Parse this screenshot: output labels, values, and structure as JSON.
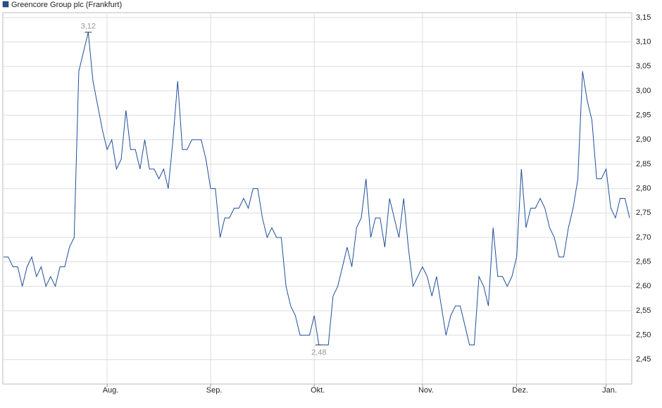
{
  "chart_data": {
    "type": "line",
    "categories": [
      null,
      null,
      null,
      null,
      null,
      null,
      null,
      null,
      null,
      null,
      null,
      null,
      null,
      null,
      null,
      null,
      null,
      null,
      null,
      null,
      null,
      null,
      "Aug.",
      null,
      null,
      null,
      null,
      null,
      null,
      null,
      null,
      null,
      null,
      null,
      null,
      null,
      null,
      null,
      null,
      null,
      null,
      null,
      null,
      null,
      "Sep.",
      null,
      null,
      null,
      null,
      null,
      null,
      null,
      null,
      null,
      null,
      null,
      null,
      null,
      null,
      null,
      null,
      null,
      null,
      null,
      null,
      null,
      "Okt.",
      null,
      null,
      null,
      null,
      null,
      null,
      null,
      null,
      null,
      null,
      null,
      null,
      null,
      null,
      null,
      null,
      null,
      null,
      null,
      null,
      null,
      null,
      "Nov.",
      null,
      null,
      null,
      null,
      null,
      null,
      null,
      null,
      null,
      null,
      null,
      null,
      null,
      null,
      null,
      null,
      null,
      null,
      null,
      "Dez.",
      null,
      null,
      null,
      null,
      null,
      null,
      null,
      null,
      null,
      null,
      null,
      null,
      null,
      null,
      null,
      null,
      null,
      null,
      "Jan.",
      null,
      null,
      null,
      null,
      null
    ],
    "series": [
      {
        "name": "Greencore Group plc (Frankfurt)",
        "color": "#1f4e9a",
        "values": [
          2.66,
          2.66,
          2.64,
          2.64,
          2.6,
          2.64,
          2.66,
          2.62,
          2.64,
          2.6,
          2.62,
          2.6,
          2.64,
          2.64,
          2.68,
          2.7,
          3.04,
          3.08,
          3.12,
          3.02,
          2.97,
          2.92,
          2.88,
          2.9,
          2.84,
          2.86,
          2.96,
          2.88,
          2.88,
          2.84,
          2.9,
          2.84,
          2.84,
          2.82,
          2.84,
          2.8,
          2.9,
          3.02,
          2.88,
          2.88,
          2.9,
          2.9,
          2.9,
          2.86,
          2.8,
          2.8,
          2.7,
          2.74,
          2.74,
          2.76,
          2.76,
          2.78,
          2.76,
          2.8,
          2.8,
          2.74,
          2.7,
          2.72,
          2.7,
          2.7,
          2.6,
          2.56,
          2.54,
          2.5,
          2.5,
          2.5,
          2.54,
          2.48,
          2.48,
          2.48,
          2.58,
          2.6,
          2.64,
          2.68,
          2.64,
          2.72,
          2.74,
          2.82,
          2.7,
          2.74,
          2.74,
          2.68,
          2.78,
          2.74,
          2.7,
          2.78,
          2.68,
          2.6,
          2.62,
          2.64,
          2.62,
          2.58,
          2.62,
          2.56,
          2.5,
          2.54,
          2.56,
          2.56,
          2.52,
          2.48,
          2.48,
          2.62,
          2.6,
          2.56,
          2.72,
          2.62,
          2.62,
          2.6,
          2.62,
          2.66,
          2.84,
          2.72,
          2.76,
          2.76,
          2.78,
          2.76,
          2.72,
          2.7,
          2.66,
          2.66,
          2.72,
          2.76,
          2.82,
          3.04,
          2.98,
          2.94,
          2.82,
          2.82,
          2.84,
          2.76,
          2.74,
          2.78,
          2.78,
          2.74
        ]
      }
    ],
    "ylim": [
      2.4,
      3.16
    ],
    "yticks": [
      {
        "value": 2.45,
        "label": "2,45"
      },
      {
        "value": 2.5,
        "label": "2,50"
      },
      {
        "value": 2.55,
        "label": "2,55"
      },
      {
        "value": 2.6,
        "label": "2,60"
      },
      {
        "value": 2.65,
        "label": "2,65"
      },
      {
        "value": 2.7,
        "label": "2,70"
      },
      {
        "value": 2.75,
        "label": "2,75"
      },
      {
        "value": 2.8,
        "label": "2,80"
      },
      {
        "value": 2.85,
        "label": "2,85"
      },
      {
        "value": 2.9,
        "label": "2,90"
      },
      {
        "value": 2.95,
        "label": "2,95"
      },
      {
        "value": 3.0,
        "label": "3,00"
      },
      {
        "value": 3.05,
        "label": "3,05"
      },
      {
        "value": 3.1,
        "label": "3,10"
      },
      {
        "value": 3.15,
        "label": "3,15"
      }
    ],
    "annotations": [
      {
        "value": 3.12,
        "label": "3,12"
      },
      {
        "value": 2.48,
        "label": "2,48"
      }
    ],
    "grid": true
  }
}
